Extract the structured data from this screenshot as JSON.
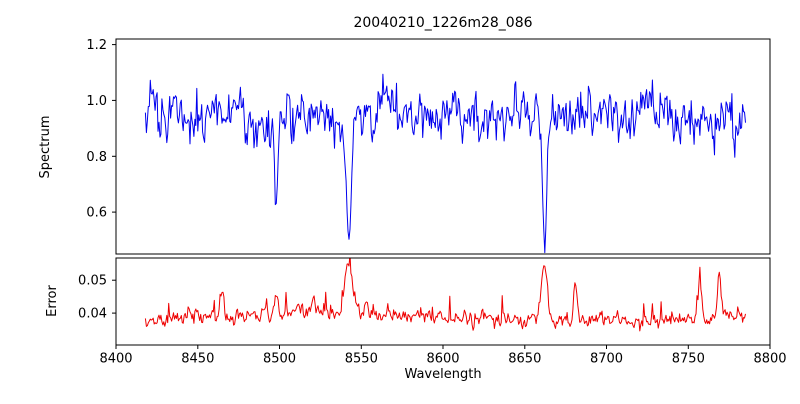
{
  "chart_data": {
    "type": "line",
    "title": "20040210_1226m28_086",
    "xlabel": "Wavelength",
    "xlim": [
      8400,
      8800
    ],
    "x_data_range": [
      8418,
      8785
    ],
    "n_points": 620,
    "x_ticks": [
      8400,
      8450,
      8500,
      8550,
      8600,
      8650,
      8700,
      8750,
      8800
    ],
    "x_tick_labels": [
      "8400",
      "8450",
      "8500",
      "8550",
      "8600",
      "8650",
      "8700",
      "8750",
      "8800"
    ],
    "grid": false,
    "legend": "none",
    "panels": [
      {
        "name": "spectrum",
        "ylabel": "Spectrum",
        "color": "#0000ee",
        "ylim": [
          0.45,
          1.22
        ],
        "y_ticks": [
          0.6,
          0.8,
          1.0,
          1.2
        ],
        "y_tick_labels": [
          "0.6",
          "0.8",
          "1.0",
          "1.2"
        ],
        "continuum": 0.945,
        "noise_sigma": 0.042,
        "ar": 0.35,
        "seed": 20040210,
        "spike_prob": 0.03,
        "spike_amp": 0.12,
        "spike_bias": -0.45,
        "waves": [
          {
            "period": 45,
            "amp": 0.014,
            "phase": 0.3
          },
          {
            "period": 13,
            "amp": 0.011,
            "phase": 2.0
          },
          {
            "period": 150,
            "amp": 0.01,
            "phase": 1.0
          }
        ],
        "absorption_lines": [
          {
            "center": 8498.0,
            "depth_frac": 0.37,
            "sigma": 1.0,
            "min_value": 0.59
          },
          {
            "center": 8542.1,
            "depth_frac": 0.49,
            "sigma": 1.6,
            "min_value": 0.48
          },
          {
            "center": 8662.1,
            "depth_frac": 0.44,
            "sigma": 1.3,
            "min_value": 0.52
          }
        ]
      },
      {
        "name": "error",
        "ylabel": "Error",
        "color": "#ee0000",
        "ylim": [
          0.03,
          0.057
        ],
        "y_ticks": [
          0.04,
          0.05
        ],
        "y_tick_labels": [
          "0.04",
          "0.05"
        ],
        "baseline": 0.0385,
        "noise_sigma": 0.0011,
        "ar": 0.4,
        "seed": 1226,
        "spike_prob": 0.05,
        "spike_amp": 0.006,
        "spike_bias": 0,
        "waves": [
          {
            "period": 320,
            "amp": 0.0012,
            "phase": 3.8
          },
          {
            "period": 37,
            "amp": 0.0006,
            "phase": 0.9
          }
        ],
        "bumps": [
          {
            "center": 8465,
            "amp": 0.008,
            "sigma": 1.2
          },
          {
            "center": 8498,
            "amp": 0.005,
            "sigma": 1.2
          },
          {
            "center": 8521,
            "amp": 0.005,
            "sigma": 1.0
          },
          {
            "center": 8542,
            "amp": 0.0155,
            "sigma": 2.2
          },
          {
            "center": 8553,
            "amp": 0.004,
            "sigma": 1.0
          },
          {
            "center": 8662,
            "amp": 0.016,
            "sigma": 1.8
          },
          {
            "center": 8681,
            "amp": 0.011,
            "sigma": 1.2
          },
          {
            "center": 8757,
            "amp": 0.011,
            "sigma": 1.0
          },
          {
            "center": 8769,
            "amp": 0.013,
            "sigma": 1.0
          }
        ]
      }
    ]
  }
}
